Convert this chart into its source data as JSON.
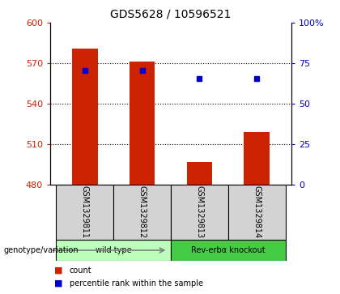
{
  "title": "GDS5628 / 10596521",
  "samples": [
    "GSM1329811",
    "GSM1329812",
    "GSM1329813",
    "GSM1329814"
  ],
  "bar_base": 480,
  "bar_tops": [
    581,
    571,
    497,
    519
  ],
  "bar_color": "#cc2200",
  "percentile_ranks": [
    70.5,
    70.5,
    65.5,
    65.5
  ],
  "percentile_color": "#0000cc",
  "ylim_left": [
    480,
    600
  ],
  "ylim_right": [
    0,
    100
  ],
  "yticks_left": [
    480,
    510,
    540,
    570,
    600
  ],
  "yticks_right": [
    0,
    25,
    50,
    75,
    100
  ],
  "ytick_labels_right": [
    "0",
    "25",
    "50",
    "75",
    "100%"
  ],
  "groups": [
    {
      "label": "wild type",
      "indices": [
        0,
        1
      ],
      "color": "#bbffbb"
    },
    {
      "label": "Rev-erbα knockout",
      "indices": [
        2,
        3
      ],
      "color": "#44cc44"
    }
  ],
  "group_label_prefix": "genotype/variation",
  "legend_items": [
    {
      "label": "count",
      "color": "#cc2200"
    },
    {
      "label": "percentile rank within the sample",
      "color": "#0000cc"
    }
  ],
  "bg_color": "#ffffff",
  "tick_color_left": "#cc2200",
  "tick_color_right": "#0000cc",
  "bar_width": 0.45
}
